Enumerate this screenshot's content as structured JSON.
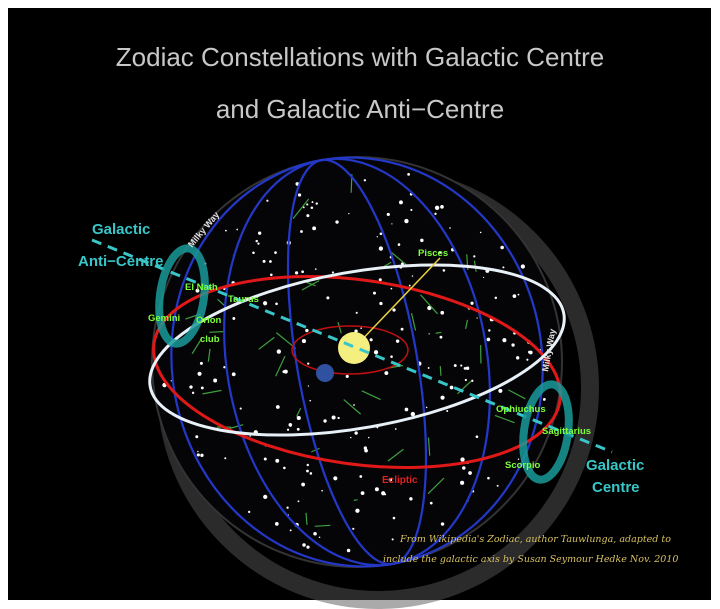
{
  "title": [
    "Zodiac Constellations with Galactic Centre",
    "and Galactic Anti−Centre"
  ],
  "galactic_anti_centre": [
    "Galactic",
    "Anti−Centre"
  ],
  "galactic_centre": [
    "Galactic",
    "Centre"
  ],
  "milky_way": [
    "Milky Way",
    "Milky Way"
  ],
  "constellations": [
    "El Nath",
    "Taurus",
    "Gemini",
    "Orion",
    "club",
    "Pisces",
    "Ophiuchus",
    "Sagittarius",
    "Scorpio"
  ],
  "ecliptic": "Ecliptic",
  "credit": [
    "From Wikipedia's Zodiac, author Tauwlunga, adapted to",
    "include the galactic axis by Susan Seymour Hedke Nov. 2010"
  ]
}
